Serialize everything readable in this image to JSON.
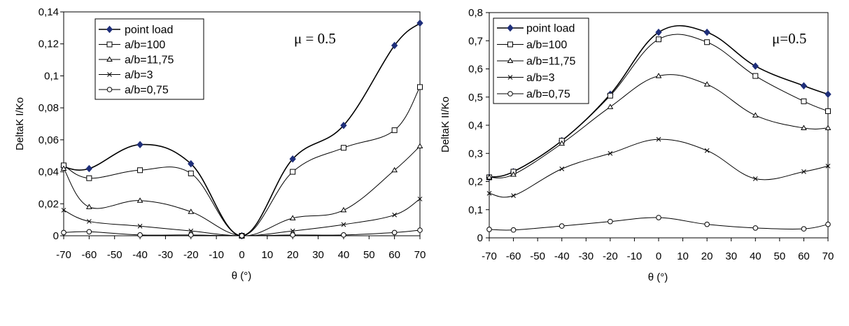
{
  "chart_data": [
    {
      "type": "line",
      "title": "",
      "annotation": "μ = 0.5",
      "xlabel": "θ (°)",
      "ylabel": "DeltaK I/Ko",
      "xlim": [
        -70,
        70
      ],
      "ylim": [
        0,
        0.14
      ],
      "xticks": [
        "-70",
        "-60",
        "-50",
        "-40",
        "-30",
        "-20",
        "-10",
        "0",
        "10",
        "20",
        "30",
        "40",
        "50",
        "60",
        "70"
      ],
      "yticks": [
        "0",
        "0,02",
        "0,04",
        "0,06",
        "0,08",
        "0,1",
        "0,12",
        "0,14"
      ],
      "legend_position": "top-left",
      "grid": false,
      "series": [
        {
          "name": "point load",
          "marker": "diamond",
          "color": "#1f2f7a",
          "x": [
            -70,
            -60,
            -40,
            -20,
            0,
            20,
            40,
            60,
            70
          ],
          "y": [
            0.043,
            0.042,
            0.057,
            0.045,
            0.0,
            0.048,
            0.069,
            0.119,
            0.133
          ]
        },
        {
          "name": "a/b=100",
          "marker": "square",
          "color": "#000000",
          "x": [
            -70,
            -60,
            -40,
            -20,
            0,
            20,
            40,
            60,
            70
          ],
          "y": [
            0.044,
            0.036,
            0.041,
            0.039,
            0.0,
            0.04,
            0.055,
            0.066,
            0.093
          ]
        },
        {
          "name": "a/b=11,75",
          "marker": "triangle",
          "color": "#000000",
          "x": [
            -70,
            -60,
            -40,
            -20,
            0,
            20,
            40,
            60,
            70
          ],
          "y": [
            0.042,
            0.018,
            0.022,
            0.015,
            0.0,
            0.011,
            0.016,
            0.041,
            0.056
          ]
        },
        {
          "name": "a/b=3",
          "marker": "x",
          "color": "#000000",
          "x": [
            -70,
            -60,
            -40,
            -20,
            0,
            20,
            40,
            60,
            70
          ],
          "y": [
            0.016,
            0.009,
            0.006,
            0.003,
            0.0,
            0.003,
            0.007,
            0.013,
            0.023
          ]
        },
        {
          "name": "a/b=0,75",
          "marker": "circle",
          "color": "#000000",
          "x": [
            -70,
            -60,
            -40,
            -20,
            0,
            20,
            40,
            60,
            70
          ],
          "y": [
            0.002,
            0.0025,
            0.0005,
            0.0005,
            0.0,
            0.0005,
            0.0005,
            0.002,
            0.0035
          ]
        }
      ]
    },
    {
      "type": "line",
      "title": "",
      "annotation": "μ=0.5",
      "xlabel": "θ (°)",
      "ylabel": "DeltaK II/Ko",
      "xlim": [
        -70,
        70
      ],
      "ylim": [
        0,
        0.8
      ],
      "xticks": [
        "-70",
        "-60",
        "-50",
        "-40",
        "-30",
        "-20",
        "-10",
        "0",
        "10",
        "20",
        "30",
        "40",
        "50",
        "60",
        "70"
      ],
      "yticks": [
        "0",
        "0,1",
        "0,2",
        "0,3",
        "0,4",
        "0,5",
        "0,6",
        "0,7",
        "0,8"
      ],
      "legend_position": "top-left",
      "grid": false,
      "series": [
        {
          "name": "point load",
          "marker": "diamond",
          "color": "#1f2f7a",
          "x": [
            -70,
            -60,
            -40,
            -20,
            0,
            20,
            40,
            60,
            70
          ],
          "y": [
            0.215,
            0.235,
            0.345,
            0.51,
            0.73,
            0.73,
            0.61,
            0.54,
            0.51
          ]
        },
        {
          "name": "a/b=100",
          "marker": "square",
          "color": "#000000",
          "x": [
            -70,
            -60,
            -40,
            -20,
            0,
            20,
            40,
            60,
            70
          ],
          "y": [
            0.215,
            0.235,
            0.345,
            0.505,
            0.705,
            0.695,
            0.575,
            0.485,
            0.45
          ]
        },
        {
          "name": "a/b=11,75",
          "marker": "triangle",
          "color": "#000000",
          "x": [
            -70,
            -60,
            -40,
            -20,
            0,
            20,
            40,
            60,
            70
          ],
          "y": [
            0.215,
            0.225,
            0.335,
            0.465,
            0.575,
            0.545,
            0.435,
            0.39,
            0.39
          ]
        },
        {
          "name": "a/b=3",
          "marker": "x",
          "color": "#000000",
          "x": [
            -70,
            -60,
            -40,
            -20,
            0,
            20,
            40,
            60,
            70
          ],
          "y": [
            0.158,
            0.15,
            0.245,
            0.3,
            0.35,
            0.31,
            0.21,
            0.235,
            0.255
          ]
        },
        {
          "name": "a/b=0,75",
          "marker": "circle",
          "color": "#000000",
          "x": [
            -70,
            -60,
            -40,
            -20,
            0,
            20,
            40,
            60,
            70
          ],
          "y": [
            0.03,
            0.028,
            0.042,
            0.058,
            0.072,
            0.048,
            0.035,
            0.032,
            0.048
          ]
        }
      ]
    }
  ]
}
